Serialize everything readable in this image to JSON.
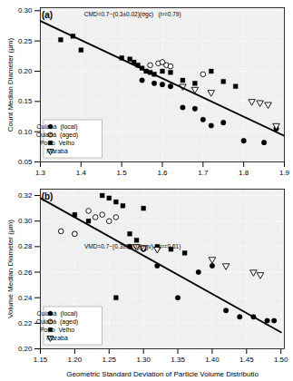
{
  "chart_data": [
    {
      "type": "scatter",
      "title": "(a)",
      "y_label": "Count Median Diameter (μm)",
      "annotations": [
        "CMD=0.7−(0.3±0.02)(σgc)   (r²=0.79)"
      ],
      "xlim": [
        1.3,
        1.9
      ],
      "ylim": [
        0.05,
        0.305
      ],
      "xticks": [
        1.3,
        1.4,
        1.5,
        1.6,
        1.7,
        1.8,
        1.9
      ],
      "yticks": [
        0.05,
        {
          "value": 0.1,
          "label": "0.10"
        },
        0.15,
        {
          "value": 0.2,
          "label": "0.20"
        },
        0.25,
        {
          "value": 0.3,
          "label": "0.30"
        }
      ],
      "grid": true,
      "legend": "lower left",
      "series": [
        {
          "name": "Cuiabá  (local)",
          "marker": "circle",
          "color": "black",
          "x": [
            1.55,
            1.58,
            1.6,
            1.62,
            1.65,
            1.68,
            1.7,
            1.72,
            1.75,
            1.8,
            1.85,
            1.88
          ],
          "values": [
            0.185,
            0.18,
            0.178,
            0.175,
            0.14,
            0.138,
            0.12,
            0.11,
            0.115,
            0.085,
            0.082,
            0.105
          ]
        },
        {
          "name": "Cuiabá  (aged)",
          "marker": "open_circle",
          "color": "black",
          "x": [
            1.57,
            1.59,
            1.6,
            1.61,
            1.62,
            1.7
          ],
          "values": [
            0.21,
            0.213,
            0.215,
            0.21,
            0.208,
            0.195
          ]
        },
        {
          "name": "Porto  Velho",
          "marker": "square",
          "color": "black",
          "x": [
            1.35,
            1.38,
            1.4,
            1.5,
            1.52,
            1.53,
            1.54,
            1.55,
            1.56,
            1.57,
            1.58,
            1.6,
            1.62,
            1.65,
            1.68,
            1.72,
            1.75,
            1.78
          ],
          "values": [
            0.252,
            0.258,
            0.235,
            0.222,
            0.22,
            0.215,
            0.21,
            0.205,
            0.2,
            0.198,
            0.195,
            0.2,
            0.198,
            0.185,
            0.18,
            0.2,
            0.183,
            0.175
          ]
        },
        {
          "name": "Marabá",
          "marker": "open_triangle_down",
          "color": "black",
          "x": [
            1.65,
            1.68,
            1.72,
            1.82,
            1.84,
            1.86,
            1.88
          ],
          "values": [
            0.175,
            0.17,
            0.165,
            0.15,
            0.148,
            0.145,
            0.11
          ]
        },
        {
          "type": "line",
          "line_style": "solid",
          "color": "black",
          "x": [
            1.3,
            1.9
          ],
          "values": [
            0.283,
            0.093
          ]
        }
      ]
    },
    {
      "type": "scatter",
      "title": "(b)",
      "x_label": "Geometric Standard Deviation of Particle Volume Distributio",
      "y_label": "Volume Median Diameter (μm)",
      "annotations": [
        "VMD=0.7−(0.3±0.03)(σgv)   (r²=0.61)"
      ],
      "xlim": [
        1.15,
        1.505
      ],
      "ylim": [
        0.2,
        0.325
      ],
      "xticks": [
        1.15,
        {
          "value": 1.2,
          "label": "1.20"
        },
        1.25,
        {
          "value": 1.3,
          "label": "1.30"
        },
        1.35,
        {
          "value": 1.4,
          "label": "1.40"
        },
        1.45,
        {
          "value": 1.5,
          "label": "1.50"
        }
      ],
      "yticks": [
        {
          "value": 0.2,
          "label": "0.20"
        },
        0.22,
        0.24,
        0.26,
        0.28,
        {
          "value": 0.3,
          "label": "0.30"
        },
        0.32
      ],
      "grid": true,
      "legend": "lower left",
      "series": [
        {
          "name": "Cuiabá  (local)",
          "marker": "circle",
          "color": "black",
          "x": [
            1.2,
            1.28,
            1.3,
            1.32,
            1.35,
            1.38,
            1.4,
            1.42,
            1.44,
            1.46,
            1.48,
            1.49
          ],
          "values": [
            0.29,
            0.28,
            0.278,
            0.265,
            0.24,
            0.26,
            0.265,
            0.23,
            0.225,
            0.225,
            0.222,
            0.222
          ]
        },
        {
          "name": "Cuiabá  (aged)",
          "marker": "open_circle",
          "color": "black",
          "x": [
            1.18,
            1.2,
            1.22,
            1.23,
            1.24,
            1.25,
            1.26
          ],
          "values": [
            0.292,
            0.29,
            0.308,
            0.303,
            0.305,
            0.3,
            0.303
          ]
        },
        {
          "name": "Porto  Velho",
          "marker": "square",
          "color": "black",
          "x": [
            1.2,
            1.22,
            1.24,
            1.25,
            1.26,
            1.27,
            1.28,
            1.29,
            1.3,
            1.32,
            1.34,
            1.36,
            1.26
          ],
          "values": [
            0.305,
            0.3,
            0.32,
            0.318,
            0.315,
            0.312,
            0.29,
            0.285,
            0.31,
            0.28,
            0.278,
            0.275,
            0.24
          ]
        },
        {
          "name": "Marabá",
          "marker": "open_triangle_down",
          "color": "black",
          "x": [
            1.29,
            1.3,
            1.32,
            1.4,
            1.42,
            1.46,
            1.47
          ],
          "values": [
            0.28,
            0.279,
            0.278,
            0.27,
            0.265,
            0.26,
            0.258
          ]
        },
        {
          "type": "line",
          "line_style": "solid",
          "color": "black",
          "x": [
            1.15,
            1.5
          ],
          "values": [
            0.318,
            0.213
          ]
        }
      ]
    }
  ]
}
